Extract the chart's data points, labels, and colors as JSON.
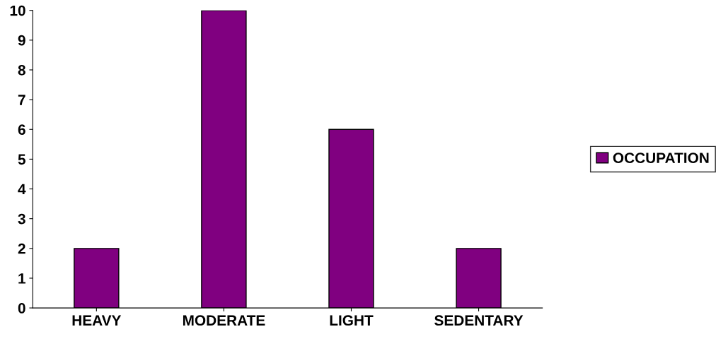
{
  "chart_data": {
    "type": "bar",
    "categories": [
      "HEAVY",
      "MODERATE",
      "LIGHT",
      "SEDENTARY"
    ],
    "series": [
      {
        "name": "OCCUPATION",
        "color": "#800080",
        "values": [
          2,
          10,
          6,
          2
        ]
      }
    ],
    "ylim": [
      0,
      10
    ],
    "yticks": [
      0,
      1,
      2,
      3,
      4,
      5,
      6,
      7,
      8,
      9,
      10
    ],
    "grid": false,
    "legend": "right"
  }
}
